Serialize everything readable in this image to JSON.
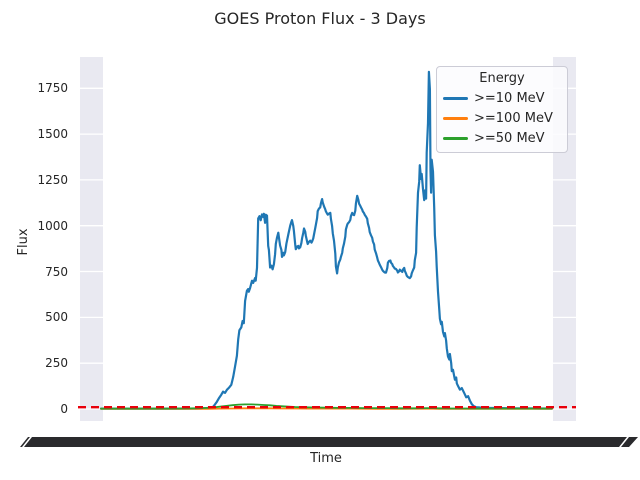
{
  "title": "GOES Proton Flux - 3 Days",
  "chart_data": {
    "type": "line",
    "title": "GOES Proton Flux - 3 Days",
    "xlabel": "Time",
    "ylabel": "Flux",
    "x_units": "hours (0-72, spanning 3 days)",
    "xticklabels_legible": false,
    "xtick_band_note": "overlapping rotated time labels rendered as a solid dark band",
    "ylim": [
      -65,
      1920
    ],
    "yticks": [
      0,
      250,
      500,
      750,
      1000,
      1250,
      1500,
      1750
    ],
    "grid": "horizontal white gridlines (visible over lavender edge bands)",
    "edge_bands": {
      "color": "#e9e9f1",
      "ranges_hours": [
        [
          -3.35,
          0.32
        ],
        [
          72.16,
          75.83
        ]
      ]
    },
    "legend": {
      "title": "Energy",
      "position": "upper right"
    },
    "threshold": {
      "value": 10,
      "color": "#e8000b",
      "style": "dashed"
    },
    "series": [
      {
        "name": ">=10 MeV",
        "color": "#1f77b4",
        "width": 2.2,
        "points": [
          [
            0,
            2
          ],
          [
            6,
            2
          ],
          [
            12,
            2
          ],
          [
            16,
            3
          ],
          [
            17.4,
            6
          ],
          [
            17.9,
            12
          ],
          [
            18.2,
            25
          ],
          [
            18.5,
            40
          ],
          [
            18.8,
            58
          ],
          [
            19.2,
            78
          ],
          [
            19.5,
            95
          ],
          [
            19.8,
            88
          ],
          [
            20.1,
            105
          ],
          [
            20.4,
            115
          ],
          [
            20.8,
            132
          ],
          [
            21.1,
            175
          ],
          [
            21.4,
            230
          ],
          [
            21.7,
            290
          ],
          [
            21.9,
            380
          ],
          [
            22.1,
            430
          ],
          [
            22.4,
            445
          ],
          [
            22.6,
            480
          ],
          [
            22.8,
            468
          ],
          [
            23,
            590
          ],
          [
            23.3,
            645
          ],
          [
            23.5,
            655
          ],
          [
            23.6,
            640
          ],
          [
            23.8,
            660
          ],
          [
            24.1,
            700
          ],
          [
            24.3,
            688
          ],
          [
            24.6,
            715
          ],
          [
            24.7,
            700
          ],
          [
            24.9,
            770
          ],
          [
            25.1,
            1040
          ],
          [
            25.3,
            1052
          ],
          [
            25.5,
            1030
          ],
          [
            25.7,
            1062
          ],
          [
            25.9,
            1048
          ],
          [
            26,
            1065
          ],
          [
            26.2,
            1016
          ],
          [
            26.3,
            1060
          ],
          [
            26.5,
            1055
          ],
          [
            26.7,
            890
          ],
          [
            26.8,
            868
          ],
          [
            27,
            772
          ],
          [
            27.2,
            782
          ],
          [
            27.4,
            762
          ],
          [
            27.6,
            790
          ],
          [
            27.8,
            845
          ],
          [
            27.9,
            900
          ],
          [
            28.1,
            935
          ],
          [
            28.3,
            962
          ],
          [
            28.4,
            938
          ],
          [
            28.6,
            892
          ],
          [
            28.8,
            868
          ],
          [
            28.9,
            830
          ],
          [
            29.1,
            852
          ],
          [
            29.2,
            838
          ],
          [
            29.4,
            856
          ],
          [
            29.6,
            902
          ],
          [
            29.9,
            952
          ],
          [
            30.2,
            1000
          ],
          [
            30.4,
            1022
          ],
          [
            30.5,
            1030
          ],
          [
            30.7,
            998
          ],
          [
            30.8,
            972
          ],
          [
            31,
            898
          ],
          [
            31.1,
            872
          ],
          [
            31.3,
            886
          ],
          [
            31.5,
            890
          ],
          [
            31.6,
            876
          ],
          [
            31.8,
            882
          ],
          [
            32,
            906
          ],
          [
            32.1,
            932
          ],
          [
            32.3,
            962
          ],
          [
            32.4,
            985
          ],
          [
            32.6,
            968
          ],
          [
            32.7,
            946
          ],
          [
            32.9,
            914
          ],
          [
            33,
            900
          ],
          [
            33.2,
            912
          ],
          [
            33.4,
            918
          ],
          [
            33.6,
            908
          ],
          [
            33.7,
            914
          ],
          [
            33.9,
            932
          ],
          [
            34,
            952
          ],
          [
            34.2,
            986
          ],
          [
            34.3,
            1006
          ],
          [
            34.5,
            1042
          ],
          [
            34.6,
            1080
          ],
          [
            34.8,
            1094
          ],
          [
            35,
            1100
          ],
          [
            35.1,
            1122
          ],
          [
            35.3,
            1145
          ],
          [
            35.4,
            1128
          ],
          [
            35.6,
            1106
          ],
          [
            35.8,
            1090
          ],
          [
            35.9,
            1078
          ],
          [
            36.1,
            1066
          ],
          [
            36.2,
            1060
          ],
          [
            36.4,
            1066
          ],
          [
            36.6,
            1070
          ],
          [
            36.7,
            1038
          ],
          [
            36.9,
            998
          ],
          [
            37,
            958
          ],
          [
            37.2,
            918
          ],
          [
            37.4,
            848
          ],
          [
            37.5,
            778
          ],
          [
            37.7,
            740
          ],
          [
            37.8,
            772
          ],
          [
            38,
            800
          ],
          [
            38.2,
            816
          ],
          [
            38.3,
            830
          ],
          [
            38.5,
            852
          ],
          [
            38.6,
            876
          ],
          [
            38.8,
            902
          ],
          [
            39,
            940
          ],
          [
            39.1,
            980
          ],
          [
            39.3,
            1005
          ],
          [
            39.4,
            1012
          ],
          [
            39.6,
            1020
          ],
          [
            39.8,
            1032
          ],
          [
            39.9,
            1052
          ],
          [
            40.1,
            1070
          ],
          [
            40.2,
            1062
          ],
          [
            40.4,
            1058
          ],
          [
            40.6,
            1082
          ],
          [
            40.7,
            1120
          ],
          [
            40.9,
            1163
          ],
          [
            41.1,
            1140
          ],
          [
            41.2,
            1120
          ],
          [
            41.4,
            1108
          ],
          [
            41.5,
            1100
          ],
          [
            41.7,
            1088
          ],
          [
            41.8,
            1078
          ],
          [
            42,
            1068
          ],
          [
            42.1,
            1060
          ],
          [
            42.3,
            1050
          ],
          [
            42.5,
            1038
          ],
          [
            42.6,
            1014
          ],
          [
            42.8,
            988
          ],
          [
            42.9,
            966
          ],
          [
            43.1,
            948
          ],
          [
            43.3,
            934
          ],
          [
            43.4,
            914
          ],
          [
            43.6,
            898
          ],
          [
            43.7,
            870
          ],
          [
            43.9,
            850
          ],
          [
            44.1,
            826
          ],
          [
            44.2,
            810
          ],
          [
            44.4,
            796
          ],
          [
            44.5,
            788
          ],
          [
            44.7,
            774
          ],
          [
            44.9,
            760
          ],
          [
            45,
            754
          ],
          [
            45.2,
            748
          ],
          [
            45.3,
            745
          ],
          [
            45.5,
            744
          ],
          [
            45.7,
            770
          ],
          [
            45.8,
            798
          ],
          [
            46,
            808
          ],
          [
            46.2,
            810
          ],
          [
            46.3,
            798
          ],
          [
            46.5,
            790
          ],
          [
            46.6,
            780
          ],
          [
            46.8,
            772
          ],
          [
            46.9,
            766
          ],
          [
            47.1,
            764
          ],
          [
            47.3,
            754
          ],
          [
            47.4,
            745
          ],
          [
            47.6,
            752
          ],
          [
            47.7,
            760
          ],
          [
            47.9,
            754
          ],
          [
            48.1,
            748
          ],
          [
            48.2,
            760
          ],
          [
            48.4,
            770
          ],
          [
            48.5,
            754
          ],
          [
            48.7,
            738
          ],
          [
            48.8,
            728
          ],
          [
            49,
            720
          ],
          [
            49.2,
            716
          ],
          [
            49.3,
            714
          ],
          [
            49.5,
            724
          ],
          [
            49.6,
            740
          ],
          [
            49.8,
            756
          ],
          [
            50,
            772
          ],
          [
            50.1,
            812
          ],
          [
            50.3,
            852
          ],
          [
            50.4,
            990
          ],
          [
            50.6,
            1180
          ],
          [
            50.8,
            1240
          ],
          [
            50.9,
            1330
          ],
          [
            51.1,
            1255
          ],
          [
            51.2,
            1282
          ],
          [
            51.4,
            1200
          ],
          [
            51.6,
            1140
          ],
          [
            51.7,
            1192
          ],
          [
            51.9,
            1148
          ],
          [
            52,
            1400
          ],
          [
            52.2,
            1560
          ],
          [
            52.35,
            1840
          ],
          [
            52.5,
            1745
          ],
          [
            52.6,
            1300
          ],
          [
            52.7,
            1180
          ],
          [
            52.8,
            1360
          ],
          [
            53,
            1295
          ],
          [
            53.2,
            1100
          ],
          [
            53.3,
            948
          ],
          [
            53.5,
            858
          ],
          [
            53.6,
            778
          ],
          [
            53.8,
            640
          ],
          [
            54,
            540
          ],
          [
            54.1,
            492
          ],
          [
            54.3,
            462
          ],
          [
            54.4,
            476
          ],
          [
            54.6,
            420
          ],
          [
            54.8,
            396
          ],
          [
            54.9,
            414
          ],
          [
            55.1,
            374
          ],
          [
            55.2,
            330
          ],
          [
            55.4,
            286
          ],
          [
            55.6,
            270
          ],
          [
            55.7,
            300
          ],
          [
            55.9,
            250
          ],
          [
            56,
            206
          ],
          [
            56.2,
            214
          ],
          [
            56.4,
            176
          ],
          [
            56.5,
            160
          ],
          [
            56.7,
            172
          ],
          [
            56.8,
            140
          ],
          [
            57,
            126
          ],
          [
            57.3,
            106
          ],
          [
            57.6,
            114
          ],
          [
            58,
            86
          ],
          [
            58.3,
            64
          ],
          [
            58.6,
            70
          ],
          [
            58.9,
            46
          ],
          [
            59.2,
            26
          ],
          [
            59.5,
            16
          ],
          [
            59.9,
            10
          ],
          [
            60.5,
            8
          ],
          [
            62,
            6
          ],
          [
            64,
            5
          ],
          [
            66,
            4
          ],
          [
            68,
            4
          ],
          [
            70,
            3
          ],
          [
            72,
            3
          ]
        ]
      },
      {
        "name": ">=100 MeV",
        "color": "#ff7f0e",
        "width": 1.8,
        "points": [
          [
            0,
            1
          ],
          [
            8,
            1
          ],
          [
            14,
            1
          ],
          [
            17,
            1
          ],
          [
            19,
            2
          ],
          [
            21,
            3
          ],
          [
            23,
            4
          ],
          [
            25,
            4
          ],
          [
            27,
            4
          ],
          [
            29,
            3
          ],
          [
            31,
            3
          ],
          [
            33,
            2
          ],
          [
            36,
            2
          ],
          [
            40,
            2
          ],
          [
            44,
            1
          ],
          [
            48,
            1
          ],
          [
            52,
            2
          ],
          [
            54,
            1
          ],
          [
            58,
            1
          ],
          [
            62,
            1
          ],
          [
            66,
            1
          ],
          [
            70,
            1
          ],
          [
            72,
            1
          ]
        ]
      },
      {
        "name": ">=50 MeV",
        "color": "#2ca02c",
        "width": 1.8,
        "points": [
          [
            0,
            2
          ],
          [
            6,
            2
          ],
          [
            10,
            2
          ],
          [
            13,
            3
          ],
          [
            15,
            4
          ],
          [
            17,
            6
          ],
          [
            18,
            9
          ],
          [
            19,
            13
          ],
          [
            20,
            17
          ],
          [
            21,
            21
          ],
          [
            22,
            24
          ],
          [
            23,
            25
          ],
          [
            24,
            25
          ],
          [
            25,
            24
          ],
          [
            26,
            22
          ],
          [
            27,
            20
          ],
          [
            28,
            17
          ],
          [
            29,
            15
          ],
          [
            30,
            13
          ],
          [
            31,
            11
          ],
          [
            32,
            10
          ],
          [
            34,
            8
          ],
          [
            36,
            7
          ],
          [
            38,
            6
          ],
          [
            40,
            6
          ],
          [
            42,
            5
          ],
          [
            44,
            5
          ],
          [
            46,
            5
          ],
          [
            48,
            4
          ],
          [
            50,
            4
          ],
          [
            52,
            5
          ],
          [
            53,
            5
          ],
          [
            54,
            4
          ],
          [
            56,
            3
          ],
          [
            58,
            3
          ],
          [
            60,
            2
          ],
          [
            64,
            2
          ],
          [
            68,
            2
          ],
          [
            72,
            2
          ]
        ]
      }
    ]
  },
  "colors": {
    "background": "#ffffff",
    "edge_band": "#e9e9f1",
    "gridline": "#ffffff",
    "text": "#262626",
    "xtick_band": "#2a2a2d",
    "threshold_red": "#e8000b"
  }
}
